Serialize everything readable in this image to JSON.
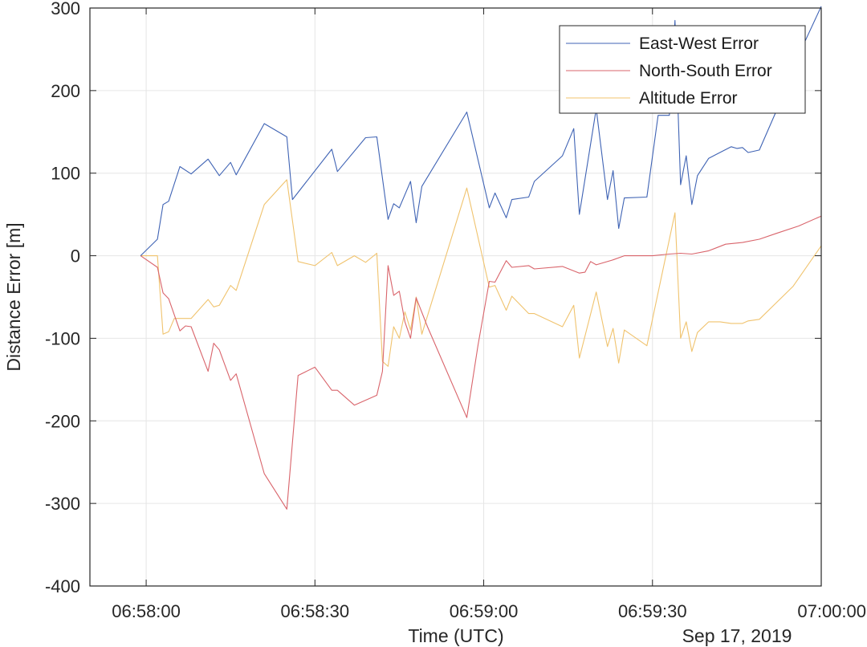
{
  "chart_data": {
    "type": "line",
    "title": "",
    "xlabel": "Time (UTC)",
    "ylabel": "Distance Error [m]",
    "date_label": "Sep 17, 2019",
    "xlim": [
      "06:57:50",
      "07:00:00"
    ],
    "ylim": [
      -400,
      300
    ],
    "xticks": [
      "06:58:00",
      "06:58:30",
      "06:59:00",
      "06:59:30",
      "07:00:00"
    ],
    "yticks": [
      300,
      200,
      100,
      0,
      -100,
      -200,
      -300,
      -400
    ],
    "grid": true,
    "legend_position": "top-right",
    "series": [
      {
        "name": "East-West Error",
        "color": "#3f63b4",
        "points": [
          [
            "06:57:59",
            0
          ],
          [
            "06:58:02",
            20
          ],
          [
            "06:58:03",
            62
          ],
          [
            "06:58:04",
            66
          ],
          [
            "06:58:06",
            108
          ],
          [
            "06:58:08",
            99
          ],
          [
            "06:58:11",
            117
          ],
          [
            "06:58:13",
            97
          ],
          [
            "06:58:15",
            113
          ],
          [
            "06:58:16",
            98
          ],
          [
            "06:58:21",
            160
          ],
          [
            "06:58:25",
            144
          ],
          [
            "06:58:26",
            68
          ],
          [
            "06:58:33",
            129
          ],
          [
            "06:58:34",
            102
          ],
          [
            "06:58:39",
            143
          ],
          [
            "06:58:41",
            144
          ],
          [
            "06:58:43",
            44
          ],
          [
            "06:58:44",
            63
          ],
          [
            "06:58:45",
            58
          ],
          [
            "06:58:47",
            90
          ],
          [
            "06:58:48",
            40
          ],
          [
            "06:58:49",
            84
          ],
          [
            "06:58:57",
            174
          ],
          [
            "06:59:01",
            58
          ],
          [
            "06:59:02",
            76
          ],
          [
            "06:59:04",
            46
          ],
          [
            "06:59:05",
            68
          ],
          [
            "06:59:08",
            71
          ],
          [
            "06:59:09",
            90
          ],
          [
            "06:59:14",
            121
          ],
          [
            "06:59:16",
            154
          ],
          [
            "06:59:17",
            50
          ],
          [
            "06:59:20",
            178
          ],
          [
            "06:59:22",
            68
          ],
          [
            "06:59:23",
            103
          ],
          [
            "06:59:24",
            33
          ],
          [
            "06:59:25",
            70
          ],
          [
            "06:59:29",
            71
          ],
          [
            "06:59:31",
            170
          ],
          [
            "06:59:33",
            170
          ],
          [
            "06:59:34",
            285
          ],
          [
            "06:59:35",
            86
          ],
          [
            "06:59:36",
            121
          ],
          [
            "06:59:37",
            62
          ],
          [
            "06:59:38",
            97
          ],
          [
            "06:59:40",
            118
          ],
          [
            "06:59:44",
            132
          ],
          [
            "06:59:45",
            130
          ],
          [
            "06:59:46",
            131
          ],
          [
            "06:59:47",
            125
          ],
          [
            "06:59:49",
            128
          ],
          [
            "06:59:52",
            175
          ],
          [
            "06:59:57",
            258
          ],
          [
            "07:00:00",
            302
          ]
        ]
      },
      {
        "name": "North-South Error",
        "color": "#d9646b",
        "points": [
          [
            "06:57:59",
            0
          ],
          [
            "06:58:02",
            -14
          ],
          [
            "06:58:03",
            -45
          ],
          [
            "06:58:04",
            -52
          ],
          [
            "06:58:06",
            -91
          ],
          [
            "06:58:07",
            -85
          ],
          [
            "06:58:08",
            -86
          ],
          [
            "06:58:11",
            -140
          ],
          [
            "06:58:12",
            -106
          ],
          [
            "06:58:13",
            -114
          ],
          [
            "06:58:15",
            -151
          ],
          [
            "06:58:16",
            -143
          ],
          [
            "06:58:21",
            -264
          ],
          [
            "06:58:25",
            -307
          ],
          [
            "06:58:27",
            -145
          ],
          [
            "06:58:30",
            -135
          ],
          [
            "06:58:33",
            -163
          ],
          [
            "06:58:34",
            -163
          ],
          [
            "06:58:37",
            -181
          ],
          [
            "06:58:41",
            -169
          ],
          [
            "06:58:42",
            -140
          ],
          [
            "06:58:43",
            -12
          ],
          [
            "06:58:44",
            -48
          ],
          [
            "06:58:45",
            -43
          ],
          [
            "06:58:46",
            -80
          ],
          [
            "06:58:47",
            -100
          ],
          [
            "06:58:48",
            -51
          ],
          [
            "06:58:50",
            -86
          ],
          [
            "06:58:57",
            -196
          ],
          [
            "06:58:59",
            -108
          ],
          [
            "06:59:01",
            -31
          ],
          [
            "06:59:02",
            -32
          ],
          [
            "06:59:04",
            -6
          ],
          [
            "06:59:05",
            -14
          ],
          [
            "06:59:08",
            -12
          ],
          [
            "06:59:09",
            -16
          ],
          [
            "06:59:14",
            -13
          ],
          [
            "06:59:17",
            -21
          ],
          [
            "06:59:18",
            -20
          ],
          [
            "06:59:19",
            -7
          ],
          [
            "06:59:20",
            -11
          ],
          [
            "06:59:23",
            -5
          ],
          [
            "06:59:25",
            0
          ],
          [
            "06:59:30",
            0
          ],
          [
            "06:59:33",
            2
          ],
          [
            "06:59:35",
            3
          ],
          [
            "06:59:37",
            2
          ],
          [
            "06:59:40",
            6
          ],
          [
            "06:59:43",
            14
          ],
          [
            "06:59:46",
            16
          ],
          [
            "06:59:49",
            20
          ],
          [
            "06:59:52",
            27
          ],
          [
            "06:59:56",
            36
          ],
          [
            "07:00:00",
            48
          ]
        ]
      },
      {
        "name": "Altitude Error",
        "color": "#f0c36e",
        "points": [
          [
            "06:57:59",
            0
          ],
          [
            "06:58:02",
            0
          ],
          [
            "06:58:03",
            -95
          ],
          [
            "06:58:04",
            -92
          ],
          [
            "06:58:05",
            -76
          ],
          [
            "06:58:08",
            -76
          ],
          [
            "06:58:11",
            -53
          ],
          [
            "06:58:12",
            -62
          ],
          [
            "06:58:13",
            -60
          ],
          [
            "06:58:15",
            -36
          ],
          [
            "06:58:16",
            -42
          ],
          [
            "06:58:21",
            62
          ],
          [
            "06:58:25",
            92
          ],
          [
            "06:58:27",
            -7
          ],
          [
            "06:58:30",
            -12
          ],
          [
            "06:58:33",
            4
          ],
          [
            "06:58:34",
            -12
          ],
          [
            "06:58:37",
            0
          ],
          [
            "06:58:39",
            -8
          ],
          [
            "06:58:41",
            3
          ],
          [
            "06:58:42",
            -128
          ],
          [
            "06:58:43",
            -134
          ],
          [
            "06:58:44",
            -86
          ],
          [
            "06:58:45",
            -100
          ],
          [
            "06:58:46",
            -68
          ],
          [
            "06:58:47",
            -90
          ],
          [
            "06:58:48",
            -50
          ],
          [
            "06:58:49",
            -95
          ],
          [
            "06:58:57",
            82
          ],
          [
            "06:59:01",
            -38
          ],
          [
            "06:59:02",
            -36
          ],
          [
            "06:59:04",
            -66
          ],
          [
            "06:59:05",
            -49
          ],
          [
            "06:59:08",
            -70
          ],
          [
            "06:59:09",
            -70
          ],
          [
            "06:59:14",
            -86
          ],
          [
            "06:59:16",
            -60
          ],
          [
            "06:59:17",
            -124
          ],
          [
            "06:59:20",
            -44
          ],
          [
            "06:59:22",
            -110
          ],
          [
            "06:59:23",
            -88
          ],
          [
            "06:59:24",
            -130
          ],
          [
            "06:59:25",
            -90
          ],
          [
            "06:59:29",
            -109
          ],
          [
            "06:59:34",
            52
          ],
          [
            "06:59:35",
            -100
          ],
          [
            "06:59:36",
            -80
          ],
          [
            "06:59:37",
            -116
          ],
          [
            "06:59:38",
            -93
          ],
          [
            "06:59:40",
            -80
          ],
          [
            "06:59:42",
            -80
          ],
          [
            "06:59:44",
            -82
          ],
          [
            "06:59:46",
            -82
          ],
          [
            "06:59:47",
            -79
          ],
          [
            "06:59:49",
            -77
          ],
          [
            "06:59:55",
            -37
          ],
          [
            "07:00:00",
            12
          ]
        ]
      }
    ]
  }
}
